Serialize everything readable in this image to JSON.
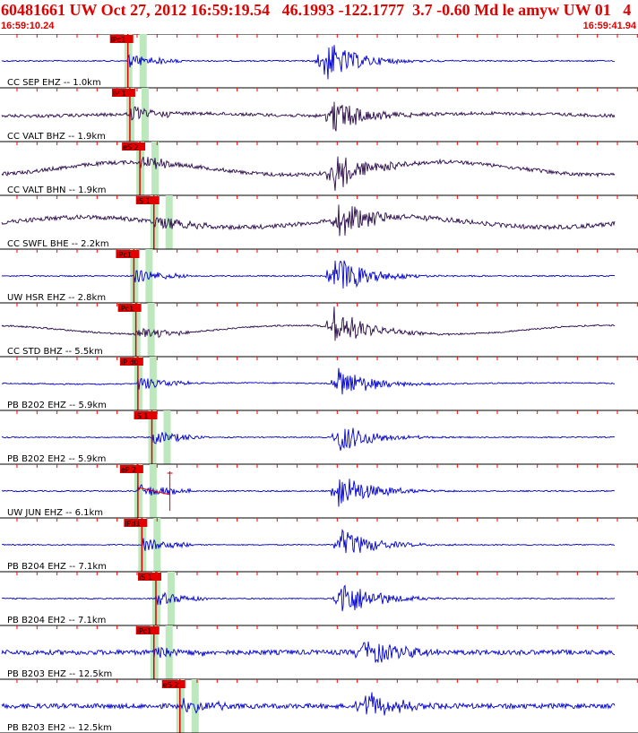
{
  "header": {
    "title": "60481661 UW Oct 27, 2012 16:59:19.54   46.1993 -122.1777  3.7 -0.60 Md le amyw UW 01   4",
    "start_time": "16:59:10.24",
    "end_time": "16:59:41.94"
  },
  "colors": {
    "header_text": "#e00000",
    "pick_flag": "#e00000",
    "wave_blue": "#0000cc",
    "wave_purple": "#2a0a4a",
    "pick_window": "#bde8bd",
    "time_tick": "#ff0000"
  },
  "traces": [
    {
      "label": "CC SEP EHZ -- 1.0km",
      "color": "purple_blue",
      "pick": "iPc1",
      "pick_time_s": 6.3,
      "s_time_s": null,
      "event_time_s": 16.0,
      "noise": 0.12,
      "event_amp": 1.0,
      "low_amp": 0.0
    },
    {
      "label": "CC VALT BHZ -- 1.9km",
      "color": "purple",
      "pick": "iP 1",
      "pick_time_s": 6.4,
      "s_time_s": null,
      "event_time_s": 16.5,
      "noise": 0.3,
      "event_amp": 0.8,
      "low_amp": 0.1
    },
    {
      "label": "CC VALT BHN -- 1.9km",
      "color": "purple",
      "pick": "eS 2",
      "pick_time_s": 6.9,
      "s_time_s": null,
      "event_time_s": 16.6,
      "noise": 0.35,
      "event_amp": 0.9,
      "low_amp": 0.5
    },
    {
      "label": "CC SWFL BHE -- 2.2km",
      "color": "purple",
      "pick": "iS 1",
      "pick_time_s": 7.6,
      "s_time_s": null,
      "event_time_s": 16.8,
      "noise": 0.4,
      "event_amp": 0.9,
      "low_amp": 0.4
    },
    {
      "label": "UW HSR EHZ -- 2.8km",
      "color": "blue",
      "pick": "iPc1",
      "pick_time_s": 6.6,
      "s_time_s": null,
      "event_time_s": 16.5,
      "noise": 0.12,
      "event_amp": 1.0,
      "low_amp": 0.0
    },
    {
      "label": "CC STD BHZ -- 5.5km",
      "color": "purple",
      "pick": "iPc1",
      "pick_time_s": 6.7,
      "s_time_s": null,
      "event_time_s": 16.5,
      "noise": 0.15,
      "event_amp": 0.9,
      "low_amp": 0.35
    },
    {
      "label": "PB B202 EHZ -- 5.9km",
      "color": "blue",
      "pick": "iP d0",
      "pick_time_s": 6.8,
      "s_time_s": null,
      "event_time_s": 16.8,
      "noise": 0.12,
      "event_amp": 0.7,
      "low_amp": 0.05
    },
    {
      "label": "PB B202 EH2 -- 5.9km",
      "color": "blue",
      "pick": "iS 1",
      "pick_time_s": 7.5,
      "s_time_s": null,
      "event_time_s": 16.8,
      "noise": 0.1,
      "event_amp": 0.7,
      "low_amp": 0.0
    },
    {
      "label": "UW JUN EHZ -- 6.1km",
      "color": "blue",
      "pick": "eP 2",
      "pick_time_s": 6.8,
      "s_time_s": 8.4,
      "event_time_s": 16.8,
      "noise": 0.12,
      "event_amp": 0.8,
      "low_amp": 0.0
    },
    {
      "label": "PB B204 EHZ -- 7.1km",
      "color": "blue",
      "pick": "iPd1",
      "pick_time_s": 7.0,
      "s_time_s": null,
      "event_time_s": 16.9,
      "noise": 0.1,
      "event_amp": 0.7,
      "low_amp": 0.0
    },
    {
      "label": "PB B204 EH2 -- 7.1km",
      "color": "blue",
      "pick": "iS 1",
      "pick_time_s": 7.7,
      "s_time_s": null,
      "event_time_s": 16.9,
      "noise": 0.1,
      "event_amp": 0.9,
      "low_amp": 0.0
    },
    {
      "label": "PB B203 EHZ -- 12.5km",
      "color": "blue",
      "pick": "iPc1",
      "pick_time_s": 7.6,
      "s_time_s": null,
      "event_time_s": 18.0,
      "noise": 0.45,
      "event_amp": 0.7,
      "low_amp": 0.0
    },
    {
      "label": "PB B203 EH2 -- 12.5km",
      "color": "blue",
      "pick": "eS 2",
      "pick_time_s": 8.9,
      "s_time_s": null,
      "event_time_s": 18.0,
      "noise": 0.45,
      "event_amp": 0.7,
      "low_amp": 0.0
    }
  ]
}
